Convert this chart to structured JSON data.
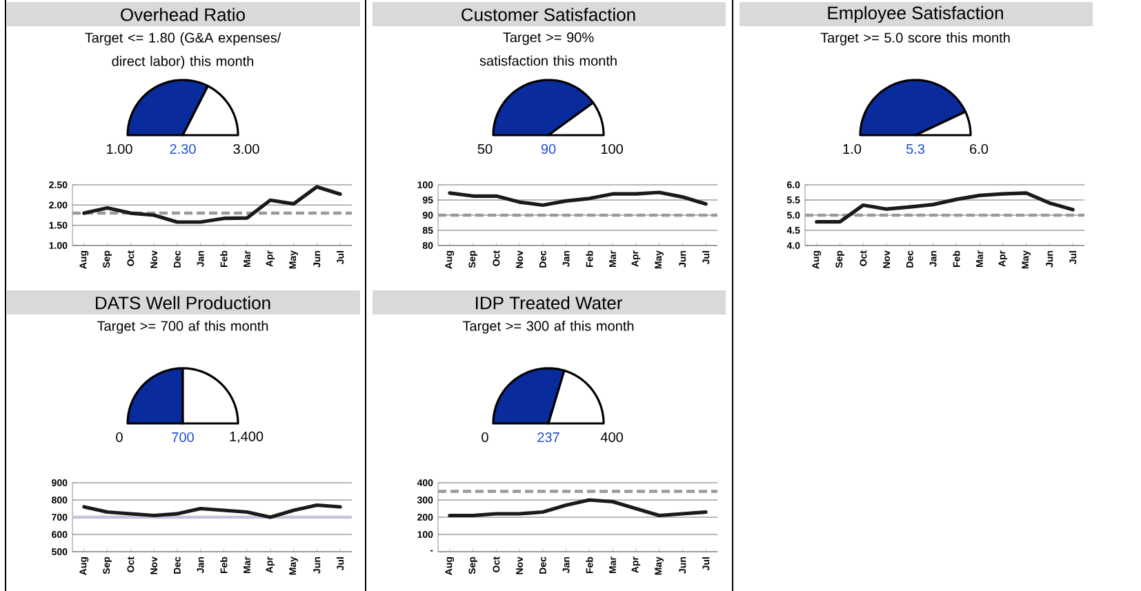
{
  "chart_data": [
    {
      "type": "pie",
      "title": "Overhead Ratio",
      "subtitle": "Target <= 1.80 (G&A expenses/ direct labor) this month",
      "categories": [
        null,
        null
      ],
      "values": [
        65,
        35
      ],
      "colors": [
        "#0a2b9b",
        "#ffffff"
      ],
      "annotations": [
        "1.00",
        "2.30",
        "3.00"
      ]
    },
    {
      "type": "line",
      "categories": [
        "Aug",
        "Sep",
        "Oct",
        "Nov",
        "Dec",
        "Jan",
        "Feb",
        "Mar",
        "Apr",
        "May",
        "Jun",
        "Jul"
      ],
      "series": [
        {
          "color": "#1a1a1a",
          "values": [
            1.8,
            1.93,
            1.8,
            1.75,
            1.58,
            1.58,
            1.67,
            1.68,
            2.12,
            2.03,
            2.45,
            2.27
          ]
        }
      ],
      "ylim": [
        1,
        2.5
      ],
      "yticks": [
        {
          "value": 1,
          "label": "1.00"
        },
        {
          "value": 1.5,
          "label": "1.50"
        },
        {
          "value": 2,
          "label": "2.00"
        },
        {
          "value": 2.5,
          "label": "2.50"
        }
      ],
      "grid": "y",
      "line_style": "solid",
      "ref_lines": [
        {
          "axis": "y",
          "value": 1.8,
          "color": "#9a9a9a",
          "line_style": "dashed"
        }
      ]
    },
    {
      "type": "pie",
      "title": "Customer Satisfaction",
      "subtitle": "Target >= 90% satisfaction this month",
      "categories": [
        null,
        null
      ],
      "values": [
        80,
        20
      ],
      "colors": [
        "#0a2b9b",
        "#ffffff"
      ],
      "annotations": [
        "50",
        "90",
        "100"
      ]
    },
    {
      "type": "line",
      "categories": [
        "Aug",
        "Sep",
        "Oct",
        "Nov",
        "Dec",
        "Jan",
        "Feb",
        "Mar",
        "Apr",
        "May",
        "Jun",
        "Jul"
      ],
      "series": [
        {
          "color": "#1a1a1a",
          "values": [
            97.3,
            96.3,
            96.3,
            94.3,
            93.3,
            94.7,
            95.5,
            97,
            97,
            97.5,
            96,
            93.7
          ]
        }
      ],
      "ylim": [
        80,
        100
      ],
      "yticks": [
        80,
        85,
        90,
        95,
        100
      ],
      "grid": "y",
      "line_style": "solid",
      "ref_lines": [
        {
          "axis": "y",
          "value": 90,
          "color": "#9a9a9a",
          "line_style": "dashed"
        }
      ]
    },
    {
      "type": "pie",
      "title": "Employee Satisfaction",
      "subtitle": "Target >= 5.0 score this month",
      "categories": [
        null,
        null
      ],
      "values": [
        86,
        14
      ],
      "colors": [
        "#0a2b9b",
        "#ffffff"
      ],
      "annotations": [
        "1.0",
        "5.3",
        "6.0"
      ]
    },
    {
      "type": "line",
      "categories": [
        "Aug",
        "Sep",
        "Oct",
        "Nov",
        "Dec",
        "Jan",
        "Feb",
        "Mar",
        "Apr",
        "May",
        "Jun",
        "Jul"
      ],
      "series": [
        {
          "color": "#1a1a1a",
          "values": [
            4.78,
            4.78,
            5.33,
            5.2,
            5.27,
            5.35,
            5.52,
            5.65,
            5.7,
            5.73,
            5.4,
            5.18
          ]
        }
      ],
      "ylim": [
        4,
        6
      ],
      "yticks": [
        {
          "value": 4,
          "label": "4.0"
        },
        {
          "value": 4.5,
          "label": "4.5"
        },
        {
          "value": 5,
          "label": "5.0"
        },
        {
          "value": 5.5,
          "label": "5.5"
        },
        {
          "value": 6,
          "label": "6.0"
        }
      ],
      "grid": "y",
      "line_style": "solid",
      "ref_lines": [
        {
          "axis": "y",
          "value": 5,
          "color": "#9a9a9a",
          "line_style": "dashed"
        }
      ]
    },
    {
      "type": "pie",
      "title": "DATS Well Production",
      "subtitle": "Target >= 700 af this month",
      "categories": [
        null,
        null
      ],
      "values": [
        50,
        50
      ],
      "colors": [
        "#0a2b9b",
        "#ffffff"
      ],
      "annotations": [
        "0",
        "700",
        "1,400"
      ]
    },
    {
      "type": "line",
      "categories": [
        "Aug",
        "Sep",
        "Oct",
        "Nov",
        "Dec",
        "Jan",
        "Feb",
        "Mar",
        "Apr",
        "May",
        "Jun",
        "Jul"
      ],
      "series": [
        {
          "color": "#1a1a1a",
          "values": [
            760,
            730,
            720,
            710,
            720,
            750,
            740,
            730,
            700,
            740,
            770,
            760
          ]
        }
      ],
      "ylim": [
        500,
        900
      ],
      "yticks": [
        500,
        600,
        700,
        800,
        900
      ],
      "grid": "y",
      "line_style": "solid",
      "ref_lines": [
        {
          "axis": "y",
          "value": 700,
          "color": "#c4c4dc",
          "line_style": "solid"
        }
      ]
    },
    {
      "type": "pie",
      "title": "IDP Treated Water",
      "subtitle": "Target >= 300 af this month",
      "categories": [
        null,
        null
      ],
      "values": [
        59.25,
        40.75
      ],
      "colors": [
        "#0a2b9b",
        "#ffffff"
      ],
      "annotations": [
        "0",
        "237",
        "400"
      ]
    },
    {
      "type": "line",
      "categories": [
        "Aug",
        "Sep",
        "Oct",
        "Nov",
        "Dec",
        "Jan",
        "Feb",
        "Mar",
        "Apr",
        "May",
        "Jun",
        "Jul"
      ],
      "series": [
        {
          "color": "#1a1a1a",
          "values": [
            210,
            210,
            220,
            220,
            230,
            270,
            300,
            290,
            250,
            210,
            220,
            230
          ]
        }
      ],
      "ylim": [
        0,
        400
      ],
      "yticks": [
        {
          "value": 0,
          "label": "-"
        },
        100,
        200,
        300,
        400
      ],
      "grid": "y",
      "line_style": "solid",
      "ref_lines": [
        {
          "axis": "y",
          "value": 350,
          "color": "#9a9a9a",
          "line_style": "dashed"
        }
      ]
    }
  ]
}
